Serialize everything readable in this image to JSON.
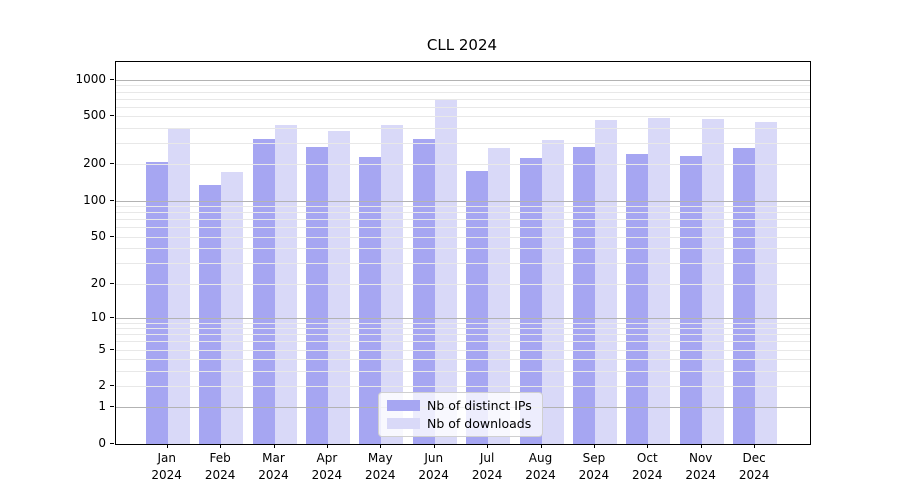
{
  "chart_data": {
    "type": "bar",
    "title": "CLL 2024",
    "categories": [
      "Jan 2024",
      "Feb 2024",
      "Mar 2024",
      "Apr 2024",
      "May 2024",
      "Jun 2024",
      "Jul 2024",
      "Aug 2024",
      "Sep 2024",
      "Oct 2024",
      "Nov 2024",
      "Dec 2024"
    ],
    "series": [
      {
        "name": "Nb of distinct IPs",
        "color": "#a6a6f2",
        "values": [
          210,
          136,
          325,
          280,
          230,
          322,
          177,
          227,
          277,
          245,
          233,
          271
        ]
      },
      {
        "name": "Nb of downloads",
        "color": "#d9d9f8",
        "values": [
          398,
          174,
          426,
          380,
          420,
          680,
          276,
          320,
          465,
          486,
          475,
          451
        ]
      }
    ],
    "yscale": "log1p",
    "yticks": [
      0,
      1,
      2,
      5,
      10,
      20,
      50,
      100,
      200,
      500,
      1000
    ],
    "ylim": [
      0,
      1400
    ],
    "xlabel": "",
    "ylabel": "",
    "grid": "on",
    "grid_major_color": "#b3b3b3",
    "grid_minor_color": "#e8e8e8",
    "legend_position": "lower-center"
  }
}
